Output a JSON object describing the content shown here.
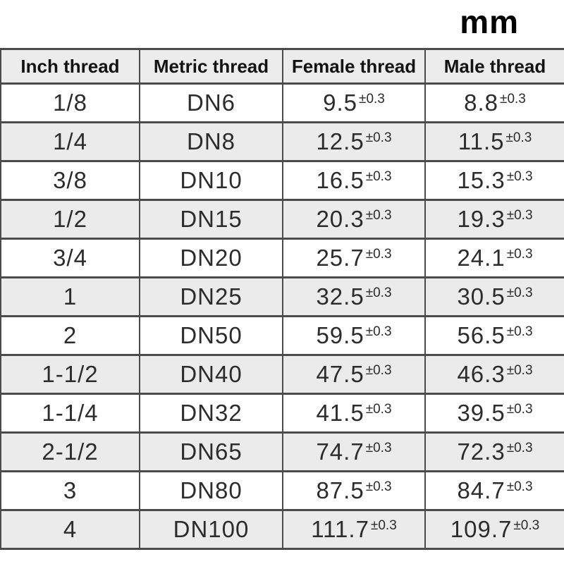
{
  "unit_label": "mm",
  "chart_data": {
    "type": "table",
    "title": "mm",
    "columns": [
      "Inch thread",
      "Metric thread",
      "Female thread",
      "Male thread"
    ],
    "tolerance": "±0.3",
    "layout": {
      "striped_rows": "even",
      "header_background": "#ececec",
      "stripe_background": "#ebebeb",
      "border_color": "#4b4b4b"
    },
    "rows": [
      {
        "inch": "1/8",
        "metric": "DN6",
        "female": "9.5",
        "male": "8.8"
      },
      {
        "inch": "1/4",
        "metric": "DN8",
        "female": "12.5",
        "male": "11.5"
      },
      {
        "inch": "3/8",
        "metric": "DN10",
        "female": "16.5",
        "male": "15.3"
      },
      {
        "inch": "1/2",
        "metric": "DN15",
        "female": "20.3",
        "male": "19.3"
      },
      {
        "inch": "3/4",
        "metric": "DN20",
        "female": "25.7",
        "male": "24.1"
      },
      {
        "inch": "1",
        "metric": "DN25",
        "female": "32.5",
        "male": "30.5"
      },
      {
        "inch": "2",
        "metric": "DN50",
        "female": "59.5",
        "male": "56.5"
      },
      {
        "inch": "1-1/2",
        "metric": "DN40",
        "female": "47.5",
        "male": "46.3"
      },
      {
        "inch": "1-1/4",
        "metric": "DN32",
        "female": "41.5",
        "male": "39.5"
      },
      {
        "inch": "2-1/2",
        "metric": "DN65",
        "female": "74.7",
        "male": "72.3"
      },
      {
        "inch": "3",
        "metric": "DN80",
        "female": "87.5",
        "male": "84.7"
      },
      {
        "inch": "4",
        "metric": "DN100",
        "female": "111.7",
        "male": "109.7"
      }
    ]
  }
}
